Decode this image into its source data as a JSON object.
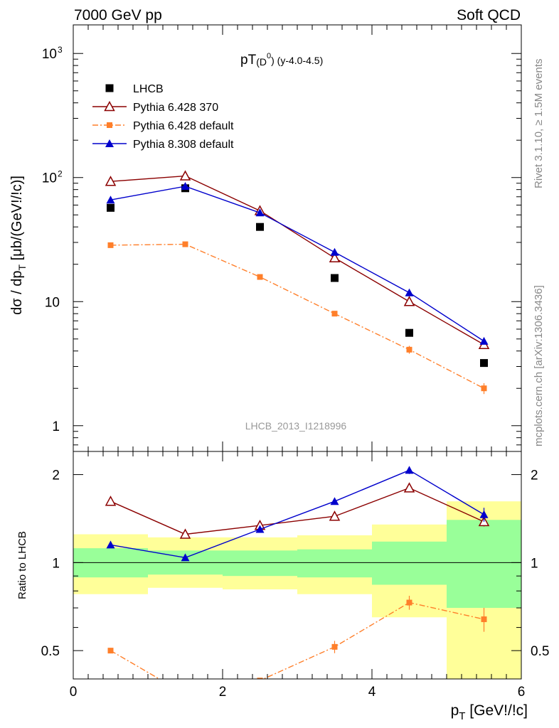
{
  "header": {
    "left": "7000 GeV pp",
    "right": "Soft QCD"
  },
  "side_labels": {
    "rivet": "Rivet 3.1.10, ≥ 1.5M events",
    "source": "mcplots.cern.ch [arXiv:1306.3436]"
  },
  "chart_data": [
    {
      "type": "line",
      "panel": "main",
      "title_main": "pT",
      "title_sub": "(D",
      "title_sup": "0",
      "title_close": ")",
      "title_tail": " (y-4.0-4.5)",
      "watermark": "LHCB_2013_I1218996",
      "ylabel_main": "dσ / dp",
      "ylabel_sub": "T",
      "ylabel_tail": " [μb/(GeV!/!c)]",
      "y_scale": "log",
      "xlim": [
        0,
        6
      ],
      "ylim": [
        0.62,
        1700
      ],
      "y_ticks": [
        {
          "value": 1,
          "label": "1"
        },
        {
          "value": 10,
          "label": "10"
        },
        {
          "value": 100,
          "label": "10",
          "sup": "2"
        },
        {
          "value": 1000,
          "label": "10",
          "sup": "3"
        }
      ],
      "legend_position": "top-left",
      "series": [
        {
          "name": "LHCB",
          "color": "#000000",
          "marker": "square",
          "line": "none",
          "x": [
            0.5,
            1.5,
            2.5,
            3.5,
            4.5,
            5.5
          ],
          "y": [
            57,
            82,
            40,
            15.5,
            5.6,
            3.2
          ]
        },
        {
          "name": "Pythia 6.428 370",
          "color": "#8b0000",
          "marker": "open-triangle",
          "line": "solid",
          "x": [
            0.5,
            1.5,
            2.5,
            3.5,
            4.5,
            5.5
          ],
          "y": [
            93,
            103,
            54,
            22.5,
            10,
            4.5
          ]
        },
        {
          "name": "Pythia 6.428 default",
          "color": "#ff7f2a",
          "marker": "small-square",
          "line": "dashdot",
          "x": [
            0.5,
            1.5,
            2.5,
            3.5,
            4.5,
            5.5
          ],
          "y": [
            28.5,
            29,
            15.8,
            8,
            4.1,
            2.0
          ],
          "yerr": [
            0.4,
            0.4,
            0.3,
            0.3,
            0.3,
            0.2
          ]
        },
        {
          "name": "Pythia 8.308 default",
          "color": "#0000cc",
          "marker": "filled-triangle",
          "line": "solid",
          "x": [
            0.5,
            1.5,
            2.5,
            3.5,
            4.5,
            5.5
          ],
          "y": [
            66,
            85,
            52,
            25,
            11.8,
            4.8
          ]
        }
      ]
    },
    {
      "type": "line",
      "panel": "ratio",
      "ylabel": "Ratio to LHCB",
      "xlabel_main": "p",
      "xlabel_sub": "T",
      "xlabel_tail": " [GeV!/!c]",
      "y_scale": "log",
      "xlim": [
        0,
        6
      ],
      "ylim": [
        0.4,
        2.4
      ],
      "x_ticks": [
        0,
        2,
        4,
        6
      ],
      "y_ticks": [
        0.5,
        1,
        2
      ],
      "bands": {
        "bins": [
          [
            0,
            1
          ],
          [
            1,
            2
          ],
          [
            2,
            3
          ],
          [
            3,
            4
          ],
          [
            4,
            5
          ],
          [
            5,
            6
          ]
        ],
        "stat": [
          [
            0.89,
            1.12
          ],
          [
            0.91,
            1.1
          ],
          [
            0.9,
            1.1
          ],
          [
            0.89,
            1.11
          ],
          [
            0.84,
            1.18
          ],
          [
            0.7,
            1.4
          ]
        ],
        "total": [
          [
            0.78,
            1.25
          ],
          [
            0.82,
            1.22
          ],
          [
            0.81,
            1.22
          ],
          [
            0.78,
            1.24
          ],
          [
            0.65,
            1.35
          ],
          [
            0.4,
            1.62
          ]
        ],
        "stat_color": "#99ff99",
        "total_color": "#ffff99"
      },
      "series": [
        {
          "name": "Pythia 6.428 370",
          "color": "#8b0000",
          "marker": "open-triangle",
          "line": "solid",
          "x": [
            0.5,
            1.5,
            2.5,
            3.5,
            4.5,
            5.5
          ],
          "y": [
            1.62,
            1.25,
            1.34,
            1.44,
            1.8,
            1.38
          ],
          "yerr": [
            0,
            0,
            0,
            0,
            0.05,
            0.05
          ]
        },
        {
          "name": "Pythia 6.428 default",
          "color": "#ff7f2a",
          "marker": "small-square",
          "line": "dashdot",
          "x": [
            0.5,
            1.5,
            2.5,
            3.5,
            4.5,
            5.5
          ],
          "y": [
            0.5,
            0.355,
            0.395,
            0.515,
            0.73,
            0.64
          ],
          "yerr": [
            0.01,
            0,
            0,
            0.025,
            0.04,
            0.06
          ]
        },
        {
          "name": "Pythia 8.308 default",
          "color": "#0000cc",
          "marker": "filled-triangle",
          "line": "solid",
          "x": [
            0.5,
            1.5,
            2.5,
            3.5,
            4.5,
            5.5
          ],
          "y": [
            1.15,
            1.04,
            1.3,
            1.62,
            2.07,
            1.46
          ],
          "yerr": [
            0,
            0,
            0,
            0,
            0.06,
            0.08
          ]
        }
      ]
    }
  ]
}
